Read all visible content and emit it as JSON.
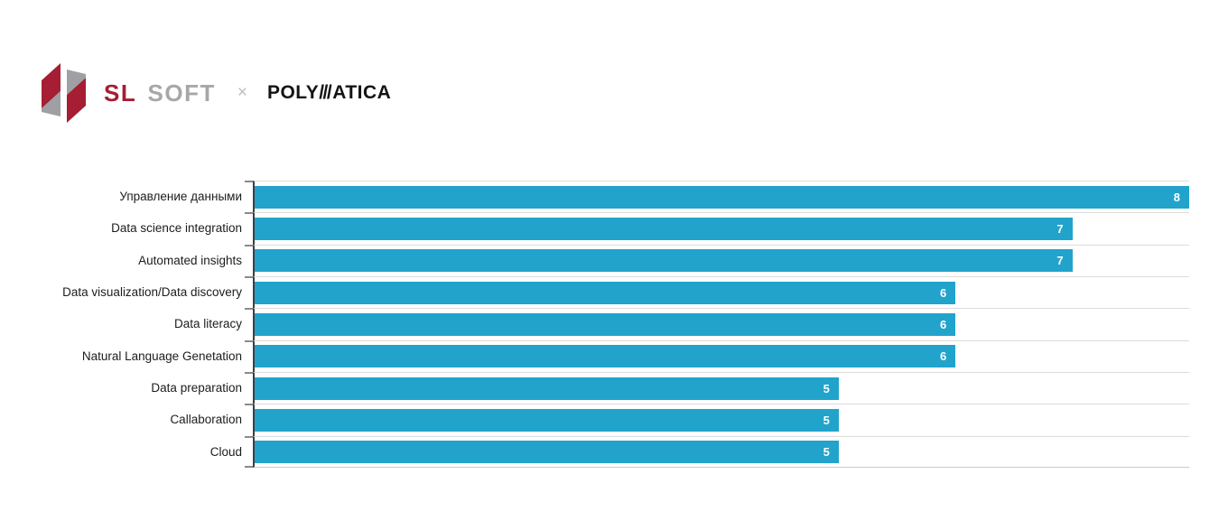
{
  "header": {
    "sl_soft": {
      "sl": "SL",
      "soft": "SOFT"
    },
    "separator": "×",
    "polymatica": {
      "poly": "POLY",
      "slashes": "///",
      "atica": "ATICA"
    },
    "colors": {
      "brand_red": "#A51E33",
      "brand_gray": "#A7A7A7",
      "brand_black": "#141414"
    }
  },
  "chart_data": {
    "type": "bar",
    "orientation": "horizontal",
    "title": "",
    "xlabel": "",
    "ylabel": "",
    "categories": [
      "Управление данными",
      "Data science integration",
      "Automated insights",
      "Data visualization/Data discovery",
      "Data literacy",
      "Natural Language Genetation",
      "Data preparation",
      "Callaboration",
      "Cloud"
    ],
    "values": [
      8,
      7,
      7,
      6,
      6,
      6,
      5,
      5,
      5
    ],
    "xlim": [
      0,
      8
    ],
    "grid": "category separator lines, horizontal, full plot width",
    "legend": "none",
    "value_labels": "white, inside bar at right end",
    "colors": {
      "bar": "#21A3CC",
      "gridline": "#DCDCDC",
      "axis": "#3F3F3F",
      "tick": "#8A8A8A",
      "category_label": "#1C1C1C",
      "value_label": "#FFFFFF"
    }
  }
}
